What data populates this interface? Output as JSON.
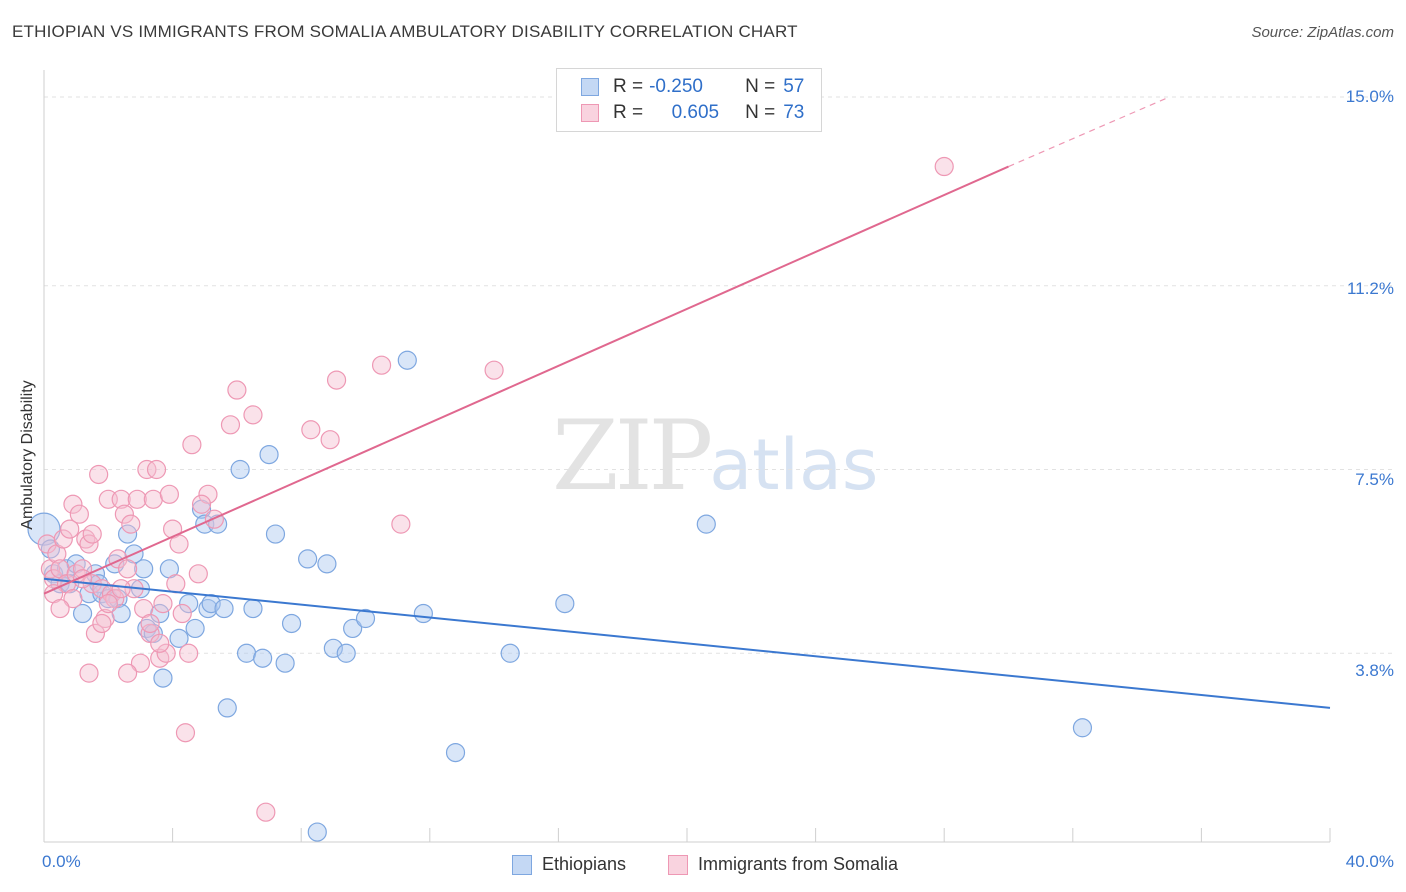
{
  "header": {
    "title": "ETHIOPIAN VS IMMIGRANTS FROM SOMALIA AMBULATORY DISABILITY CORRELATION CHART",
    "source": "Source: ZipAtlas.com"
  },
  "watermark": {
    "zip": "ZIP",
    "atlas": "atlas"
  },
  "legend": {
    "rows": [
      {
        "r_label": "R =",
        "r_value": "-0.250",
        "n_label": "N =",
        "n_value": "57"
      },
      {
        "r_label": "R =",
        "r_value": "0.605",
        "n_label": "N =",
        "n_value": "73"
      }
    ]
  },
  "colors": {
    "blue": "#3b78d0",
    "blue_fill": "#aac8ef",
    "blue_stroke": "#7ea7e0",
    "pink": "#e0688f",
    "pink_fill": "#f5bfd0",
    "pink_stroke": "#ee98b4",
    "grid": "#e2e2e2"
  },
  "chart_data": {
    "type": "scatter",
    "title": "ETHIOPIAN VS IMMIGRANTS FROM SOMALIA AMBULATORY DISABILITY CORRELATION CHART",
    "xlabel": "",
    "ylabel": "Ambulatory Disability",
    "xlim": [
      0,
      40
    ],
    "ylim": [
      0,
      15.5
    ],
    "x_tick_labels": [
      "0.0%",
      "40.0%"
    ],
    "y_ticks": [
      3.8,
      7.5,
      11.2,
      15.0
    ],
    "y_tick_labels": [
      "3.8%",
      "7.5%",
      "11.2%",
      "15.0%"
    ],
    "series": [
      {
        "name": "Ethiopians",
        "color": "#3b78d0",
        "r": -0.25,
        "n": 57,
        "trend": {
          "x0": 0,
          "y0": 5.3,
          "x1": 40,
          "y1": 2.7
        },
        "points": [
          [
            0.0,
            6.3
          ],
          [
            0.2,
            5.9
          ],
          [
            0.3,
            5.4
          ],
          [
            0.5,
            5.2
          ],
          [
            0.7,
            5.5
          ],
          [
            0.8,
            5.2
          ],
          [
            1.0,
            5.6
          ],
          [
            1.2,
            4.6
          ],
          [
            1.4,
            5.0
          ],
          [
            1.6,
            5.4
          ],
          [
            1.7,
            5.2
          ],
          [
            1.8,
            5.0
          ],
          [
            2.0,
            4.9
          ],
          [
            2.2,
            5.6
          ],
          [
            2.3,
            4.9
          ],
          [
            2.4,
            4.6
          ],
          [
            2.6,
            6.2
          ],
          [
            2.8,
            5.8
          ],
          [
            3.0,
            5.1
          ],
          [
            3.1,
            5.5
          ],
          [
            3.2,
            4.3
          ],
          [
            3.4,
            4.2
          ],
          [
            3.6,
            4.6
          ],
          [
            3.7,
            3.3
          ],
          [
            3.9,
            5.5
          ],
          [
            4.2,
            4.1
          ],
          [
            4.5,
            4.8
          ],
          [
            4.7,
            4.3
          ],
          [
            4.9,
            6.7
          ],
          [
            5.0,
            6.4
          ],
          [
            5.1,
            4.7
          ],
          [
            5.2,
            4.8
          ],
          [
            5.4,
            6.4
          ],
          [
            5.6,
            4.7
          ],
          [
            5.7,
            2.7
          ],
          [
            6.1,
            7.5
          ],
          [
            6.3,
            3.8
          ],
          [
            6.5,
            4.7
          ],
          [
            6.8,
            3.7
          ],
          [
            7.0,
            7.8
          ],
          [
            7.2,
            6.2
          ],
          [
            7.5,
            3.6
          ],
          [
            7.7,
            4.4
          ],
          [
            8.2,
            5.7
          ],
          [
            8.8,
            5.6
          ],
          [
            9.0,
            3.9
          ],
          [
            8.5,
            0.2
          ],
          [
            9.4,
            3.8
          ],
          [
            9.6,
            4.3
          ],
          [
            10.0,
            4.5
          ],
          [
            11.3,
            9.7
          ],
          [
            11.8,
            4.6
          ],
          [
            12.8,
            1.8
          ],
          [
            14.5,
            3.8
          ],
          [
            16.2,
            4.8
          ],
          [
            20.6,
            6.4
          ],
          [
            32.3,
            2.3
          ]
        ]
      },
      {
        "name": "Immigrants from Somalia",
        "color": "#e0688f",
        "r": 0.605,
        "n": 73,
        "trend": {
          "x0": 0,
          "y0": 5.0,
          "x1": 30.0,
          "y1": 13.6,
          "dash_x1": 35.0,
          "dash_y1": 15.0
        },
        "points": [
          [
            0.1,
            6.0
          ],
          [
            0.2,
            5.5
          ],
          [
            0.3,
            5.3
          ],
          [
            0.4,
            5.8
          ],
          [
            0.5,
            5.5
          ],
          [
            0.6,
            6.1
          ],
          [
            0.7,
            5.2
          ],
          [
            0.8,
            6.3
          ],
          [
            0.9,
            6.8
          ],
          [
            1.0,
            5.4
          ],
          [
            1.1,
            6.6
          ],
          [
            1.2,
            5.5
          ],
          [
            1.3,
            6.1
          ],
          [
            1.4,
            6.0
          ],
          [
            1.5,
            5.2
          ],
          [
            1.6,
            4.2
          ],
          [
            1.7,
            7.4
          ],
          [
            1.8,
            5.1
          ],
          [
            1.9,
            4.5
          ],
          [
            2.0,
            6.9
          ],
          [
            2.1,
            5.0
          ],
          [
            2.2,
            4.9
          ],
          [
            2.3,
            5.7
          ],
          [
            2.4,
            6.9
          ],
          [
            2.5,
            6.6
          ],
          [
            2.6,
            5.5
          ],
          [
            2.7,
            6.4
          ],
          [
            2.8,
            5.1
          ],
          [
            2.9,
            6.9
          ],
          [
            3.0,
            3.6
          ],
          [
            3.1,
            4.7
          ],
          [
            3.2,
            7.5
          ],
          [
            3.3,
            4.2
          ],
          [
            3.4,
            6.9
          ],
          [
            3.5,
            7.5
          ],
          [
            3.6,
            3.7
          ],
          [
            3.7,
            4.8
          ],
          [
            3.8,
            3.8
          ],
          [
            3.9,
            7.0
          ],
          [
            4.0,
            6.3
          ],
          [
            4.1,
            5.2
          ],
          [
            4.2,
            6.0
          ],
          [
            4.3,
            4.6
          ],
          [
            4.4,
            2.2
          ],
          [
            4.5,
            3.8
          ],
          [
            4.6,
            8.0
          ],
          [
            4.8,
            5.4
          ],
          [
            5.1,
            7.0
          ],
          [
            5.3,
            6.5
          ],
          [
            5.8,
            8.4
          ],
          [
            6.0,
            9.1
          ],
          [
            6.5,
            8.6
          ],
          [
            6.9,
            0.6
          ],
          [
            8.3,
            8.3
          ],
          [
            8.9,
            8.1
          ],
          [
            9.1,
            9.3
          ],
          [
            10.5,
            9.6
          ],
          [
            11.1,
            6.4
          ],
          [
            14.0,
            9.5
          ],
          [
            28.0,
            13.6
          ],
          [
            1.4,
            3.4
          ],
          [
            2.6,
            3.4
          ],
          [
            3.3,
            4.4
          ],
          [
            0.9,
            4.9
          ],
          [
            1.2,
            5.3
          ],
          [
            2.4,
            5.1
          ],
          [
            0.3,
            5.0
          ],
          [
            1.8,
            4.4
          ],
          [
            3.6,
            4.0
          ],
          [
            4.9,
            6.8
          ],
          [
            0.5,
            4.7
          ],
          [
            2.0,
            4.8
          ],
          [
            1.5,
            6.2
          ]
        ]
      }
    ]
  },
  "bottom_legend": [
    {
      "label": "Ethiopians"
    },
    {
      "label": "Immigrants from Somalia"
    }
  ]
}
